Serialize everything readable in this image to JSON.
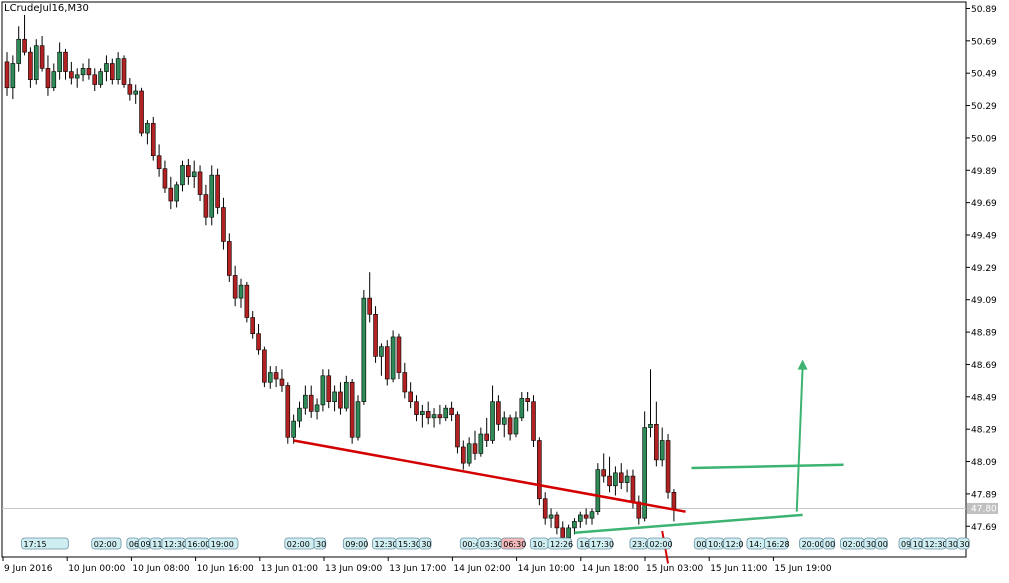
{
  "chart": {
    "symbol_label": "LCrudeJul16,M30",
    "last_price_label": "47.80",
    "colors": {
      "up": "#2e8b57",
      "down": "#b22222",
      "support": "#d40000",
      "pattern": "#3cb371",
      "grid": "#c8c8c8",
      "axis": "#000000",
      "event_fill": "#cfeef2",
      "event_fill_red": "#f4b8b8",
      "event_border": "#6a8fa0"
    }
  },
  "chart_data": {
    "type": "candlestick",
    "title": "LCrudeJul16,M30",
    "ylim": [
      47.5,
      50.93
    ],
    "y_ticks": [
      "50.89",
      "50.69",
      "50.49",
      "50.29",
      "50.09",
      "49.89",
      "49.69",
      "49.49",
      "49.29",
      "49.09",
      "48.89",
      "48.69",
      "48.49",
      "48.29",
      "48.09",
      "47.89",
      "47.69"
    ],
    "x_labels": [
      "9 Jun 2016",
      "10 Jun 00:00",
      "10 Jun 08:00",
      "10 Jun 16:00",
      "13 Jun 01:00",
      "13 Jun 09:00",
      "13 Jun 17:00",
      "14 Jun 02:00",
      "14 Jun 10:00",
      "14 Jun 18:00",
      "15 Jun 03:00",
      "15 Jun 11:00",
      "15 Jun 19:00"
    ],
    "last_price": 47.8,
    "candles": [
      [
        50.56,
        50.62,
        50.35,
        50.4
      ],
      [
        50.4,
        50.6,
        50.33,
        50.55
      ],
      [
        50.55,
        50.78,
        50.5,
        50.7
      ],
      [
        50.7,
        50.85,
        50.6,
        50.62
      ],
      [
        50.62,
        50.65,
        50.4,
        50.45
      ],
      [
        50.45,
        50.7,
        50.42,
        50.66
      ],
      [
        50.66,
        50.72,
        50.5,
        50.52
      ],
      [
        50.52,
        50.6,
        50.35,
        50.4
      ],
      [
        50.4,
        50.55,
        50.38,
        50.5
      ],
      [
        50.5,
        50.68,
        50.45,
        50.62
      ],
      [
        50.62,
        50.64,
        50.45,
        50.5
      ],
      [
        50.5,
        50.56,
        50.42,
        50.46
      ],
      [
        50.46,
        50.52,
        50.4,
        50.48
      ],
      [
        50.48,
        50.55,
        50.44,
        50.52
      ],
      [
        50.52,
        50.58,
        50.45,
        50.48
      ],
      [
        50.48,
        50.52,
        50.38,
        50.42
      ],
      [
        50.42,
        50.52,
        50.4,
        50.5
      ],
      [
        50.5,
        50.6,
        50.44,
        50.55
      ],
      [
        50.55,
        50.58,
        50.42,
        50.45
      ],
      [
        50.45,
        50.62,
        50.42,
        50.58
      ],
      [
        50.58,
        50.6,
        50.4,
        50.42
      ],
      [
        50.42,
        50.46,
        50.32,
        50.36
      ],
      [
        50.36,
        50.42,
        50.3,
        50.38
      ],
      [
        50.38,
        50.4,
        50.1,
        50.12
      ],
      [
        50.12,
        50.2,
        50.05,
        50.18
      ],
      [
        50.18,
        50.22,
        49.95,
        49.98
      ],
      [
        49.98,
        50.05,
        49.85,
        49.9
      ],
      [
        49.9,
        49.95,
        49.75,
        49.78
      ],
      [
        49.78,
        49.85,
        49.65,
        49.7
      ],
      [
        49.7,
        49.82,
        49.66,
        49.8
      ],
      [
        49.8,
        49.95,
        49.76,
        49.92
      ],
      [
        49.92,
        49.96,
        49.8,
        49.85
      ],
      [
        49.85,
        49.95,
        49.78,
        49.88
      ],
      [
        49.88,
        49.92,
        49.7,
        49.74
      ],
      [
        49.74,
        49.8,
        49.55,
        49.6
      ],
      [
        49.6,
        49.92,
        49.55,
        49.86
      ],
      [
        49.86,
        49.9,
        49.62,
        49.66
      ],
      [
        49.66,
        49.72,
        49.4,
        49.45
      ],
      [
        49.45,
        49.5,
        49.2,
        49.24
      ],
      [
        49.24,
        49.3,
        49.05,
        49.1
      ],
      [
        49.1,
        49.22,
        49.04,
        49.18
      ],
      [
        49.18,
        49.2,
        48.95,
        48.98
      ],
      [
        48.98,
        49.02,
        48.85,
        48.88
      ],
      [
        48.88,
        48.94,
        48.75,
        48.78
      ],
      [
        48.78,
        48.8,
        48.55,
        48.58
      ],
      [
        48.58,
        48.68,
        48.54,
        48.64
      ],
      [
        48.64,
        48.68,
        48.55,
        48.6
      ],
      [
        48.6,
        48.66,
        48.52,
        48.56
      ],
      [
        48.56,
        48.58,
        48.2,
        48.24
      ],
      [
        48.24,
        48.38,
        48.2,
        48.34
      ],
      [
        48.34,
        48.46,
        48.3,
        48.42
      ],
      [
        48.42,
        48.56,
        48.38,
        48.5
      ],
      [
        48.5,
        48.56,
        48.36,
        48.4
      ],
      [
        48.4,
        48.48,
        48.35,
        48.44
      ],
      [
        48.44,
        48.66,
        48.4,
        48.62
      ],
      [
        48.62,
        48.66,
        48.42,
        48.46
      ],
      [
        48.46,
        48.56,
        48.4,
        48.52
      ],
      [
        48.52,
        48.58,
        48.38,
        48.42
      ],
      [
        48.42,
        48.62,
        48.4,
        48.58
      ],
      [
        48.58,
        48.6,
        48.2,
        48.24
      ],
      [
        48.24,
        48.5,
        48.22,
        48.46
      ],
      [
        48.46,
        49.15,
        48.44,
        49.1
      ],
      [
        49.1,
        49.26,
        48.95,
        49.0
      ],
      [
        49.0,
        49.05,
        48.7,
        48.74
      ],
      [
        48.74,
        48.82,
        48.62,
        48.8
      ],
      [
        48.8,
        48.84,
        48.56,
        48.6
      ],
      [
        48.6,
        48.9,
        48.58,
        48.86
      ],
      [
        48.86,
        48.88,
        48.6,
        48.64
      ],
      [
        48.64,
        48.7,
        48.48,
        48.52
      ],
      [
        48.52,
        48.58,
        48.42,
        48.46
      ],
      [
        48.46,
        48.5,
        48.34,
        48.38
      ],
      [
        48.38,
        48.44,
        48.3,
        48.4
      ],
      [
        48.4,
        48.46,
        48.32,
        48.36
      ],
      [
        48.36,
        48.42,
        48.3,
        48.38
      ],
      [
        48.38,
        48.44,
        48.32,
        48.36
      ],
      [
        48.36,
        48.44,
        48.34,
        48.42
      ],
      [
        48.42,
        48.46,
        48.34,
        48.38
      ],
      [
        48.38,
        48.4,
        48.14,
        48.18
      ],
      [
        48.18,
        48.22,
        48.04,
        48.08
      ],
      [
        48.08,
        48.24,
        48.06,
        48.2
      ],
      [
        48.2,
        48.28,
        48.1,
        48.14
      ],
      [
        48.14,
        48.3,
        48.12,
        48.26
      ],
      [
        48.26,
        48.36,
        48.18,
        48.22
      ],
      [
        48.22,
        48.56,
        48.2,
        48.46
      ],
      [
        48.46,
        48.5,
        48.28,
        48.32
      ],
      [
        48.32,
        48.4,
        48.24,
        48.36
      ],
      [
        48.36,
        48.38,
        48.22,
        48.26
      ],
      [
        48.26,
        48.4,
        48.24,
        48.36
      ],
      [
        48.36,
        48.52,
        48.34,
        48.48
      ],
      [
        48.48,
        48.52,
        48.4,
        48.46
      ],
      [
        48.46,
        48.5,
        48.18,
        48.22
      ],
      [
        48.22,
        48.24,
        47.82,
        47.86
      ],
      [
        47.86,
        47.9,
        47.7,
        47.74
      ],
      [
        47.74,
        47.8,
        47.68,
        47.76
      ],
      [
        47.76,
        47.78,
        47.64,
        47.68
      ],
      [
        47.68,
        47.72,
        47.6,
        47.62
      ],
      [
        47.62,
        47.7,
        47.58,
        47.68
      ],
      [
        47.68,
        47.74,
        47.64,
        47.72
      ],
      [
        47.72,
        47.78,
        47.68,
        47.76
      ],
      [
        47.76,
        47.8,
        47.7,
        47.74
      ],
      [
        47.74,
        47.8,
        47.7,
        47.78
      ],
      [
        47.78,
        48.08,
        47.76,
        48.04
      ],
      [
        48.04,
        48.14,
        47.96,
        48.0
      ],
      [
        48.0,
        48.12,
        47.9,
        47.94
      ],
      [
        47.94,
        48.06,
        47.88,
        48.02
      ],
      [
        48.02,
        48.08,
        47.92,
        47.96
      ],
      [
        47.96,
        48.04,
        47.9,
        48.0
      ],
      [
        48.0,
        48.04,
        47.8,
        47.84
      ],
      [
        47.84,
        47.88,
        47.7,
        47.74
      ],
      [
        47.74,
        48.4,
        47.72,
        48.3
      ],
      [
        48.3,
        48.66,
        48.24,
        48.32
      ],
      [
        48.32,
        48.46,
        48.06,
        48.1
      ],
      [
        48.1,
        48.3,
        48.06,
        48.22
      ],
      [
        48.22,
        48.26,
        47.86,
        47.9
      ],
      [
        47.9,
        47.92,
        47.72,
        47.8
      ]
    ]
  },
  "drawings": {
    "support_line": {
      "x": [
        49,
        116
      ],
      "y": [
        48.22,
        47.78
      ],
      "label": "support-line"
    },
    "support_line_drop": {
      "x": [
        112,
        113
      ],
      "y": [
        47.66,
        47.46
      ]
    },
    "pattern_bottom": {
      "x": [
        97,
        136
      ],
      "y": [
        47.65,
        47.76
      ]
    },
    "pattern_top": {
      "x": [
        117,
        143
      ],
      "y": [
        48.05,
        48.07
      ]
    },
    "target_arrow": {
      "x": [
        135,
        136
      ],
      "y": [
        47.78,
        48.72
      ]
    }
  },
  "event_strip": {
    "items": [
      {
        "label": "17:15",
        "x": 3,
        "w": 8,
        "red": false
      },
      {
        "label": "02:00",
        "x": 15,
        "w": 5,
        "red": false
      },
      {
        "label": "06",
        "x": 21,
        "w": 2,
        "red": false
      },
      {
        "label": "09",
        "x": 23,
        "w": 2,
        "red": false
      },
      {
        "label": "11",
        "x": 25,
        "w": 2,
        "red": false
      },
      {
        "label": "12:30",
        "x": 27,
        "w": 4,
        "red": false
      },
      {
        "label": "16:00",
        "x": 31,
        "w": 4,
        "red": false
      },
      {
        "label": "19:00",
        "x": 35,
        "w": 5,
        "red": false
      },
      {
        "label": "02:00",
        "x": 48,
        "w": 5,
        "red": false
      },
      {
        "label": "30",
        "x": 53,
        "w": 2,
        "red": false
      },
      {
        "label": "09:00",
        "x": 58,
        "w": 4,
        "red": false
      },
      {
        "label": "12:30",
        "x": 63,
        "w": 4,
        "red": false
      },
      {
        "label": "15:30",
        "x": 67,
        "w": 4,
        "red": false
      },
      {
        "label": "30",
        "x": 71,
        "w": 2,
        "red": false
      },
      {
        "label": "00:4",
        "x": 78,
        "w": 3,
        "red": false
      },
      {
        "label": "03:30",
        "x": 81,
        "w": 4,
        "red": false
      },
      {
        "label": "06:30",
        "x": 85,
        "w": 4,
        "red": true
      },
      {
        "label": "10:",
        "x": 90,
        "w": 3,
        "red": false
      },
      {
        "label": "12:26",
        "x": 93,
        "w": 4,
        "red": false
      },
      {
        "label": "16",
        "x": 98,
        "w": 2,
        "red": false
      },
      {
        "label": "17:30",
        "x": 100,
        "w": 4,
        "red": false
      },
      {
        "label": "23:0",
        "x": 107,
        "w": 3,
        "red": false
      },
      {
        "label": "02:00",
        "x": 110,
        "w": 4,
        "red": false
      },
      {
        "label": "00",
        "x": 118,
        "w": 2,
        "red": false
      },
      {
        "label": "10:0",
        "x": 120,
        "w": 3,
        "red": false
      },
      {
        "label": "12:0",
        "x": 123,
        "w": 3,
        "red": false
      },
      {
        "label": "14:",
        "x": 127,
        "w": 3,
        "red": false
      },
      {
        "label": "16:28",
        "x": 130,
        "w": 4,
        "red": false
      },
      {
        "label": "20:00",
        "x": 136,
        "w": 4,
        "red": false
      },
      {
        "label": "00",
        "x": 140,
        "w": 2,
        "red": false
      },
      {
        "label": "02:00",
        "x": 143,
        "w": 4,
        "red": false
      },
      {
        "label": "30",
        "x": 147,
        "w": 2,
        "red": false
      },
      {
        "label": "00",
        "x": 149,
        "w": 2,
        "red": false
      },
      {
        "label": "09",
        "x": 153,
        "w": 2,
        "red": false
      },
      {
        "label": "10",
        "x": 155,
        "w": 2,
        "red": false
      },
      {
        "label": "12:30",
        "x": 157,
        "w": 4,
        "red": false
      },
      {
        "label": "30",
        "x": 161,
        "w": 2,
        "red": false
      },
      {
        "label": "30",
        "x": 163,
        "w": 2,
        "red": false
      }
    ]
  }
}
